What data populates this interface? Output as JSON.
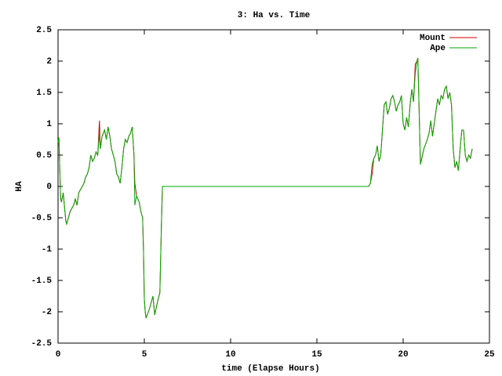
{
  "chart_data": {
    "type": "line",
    "title": "3: Ha vs. Time",
    "xlabel": "time (Elapse Hours)",
    "ylabel": "HA",
    "x": [
      0,
      0.05,
      0.15,
      0.2,
      0.3,
      0.45,
      0.5,
      0.7,
      0.9,
      1.0,
      1.1,
      1.2,
      1.4,
      1.5,
      1.6,
      1.7,
      1.8,
      1.9,
      2.0,
      2.1,
      2.2,
      2.3,
      2.4,
      2.45,
      2.55,
      2.7,
      2.8,
      2.9,
      3.0,
      3.1,
      3.2,
      3.3,
      3.4,
      3.5,
      3.6,
      3.7,
      3.8,
      3.9,
      4.0,
      4.1,
      4.2,
      4.3,
      4.4,
      4.45,
      4.55,
      4.7,
      4.8,
      4.9,
      4.95,
      5.0,
      5.05,
      5.1,
      5.3,
      5.5,
      5.6,
      5.8,
      5.9,
      6.0,
      6.05,
      18.0,
      18.1,
      18.2,
      18.3,
      18.4,
      18.5,
      18.6,
      18.7,
      18.8,
      18.9,
      19.0,
      19.1,
      19.2,
      19.3,
      19.4,
      19.5,
      19.6,
      19.7,
      19.8,
      19.9,
      20.0,
      20.1,
      20.2,
      20.3,
      20.4,
      20.5,
      20.6,
      20.7,
      20.8,
      20.85,
      20.9,
      21.0,
      21.2,
      21.4,
      21.5,
      21.6,
      21.7,
      21.8,
      21.9,
      22.0,
      22.1,
      22.2,
      22.3,
      22.4,
      22.5,
      22.6,
      22.7,
      22.8,
      22.9,
      23.0,
      23.1,
      23.2,
      23.3,
      23.4,
      23.5,
      23.6,
      23.7,
      23.8,
      23.9,
      24.0
    ],
    "series": [
      {
        "name": "Mount",
        "color": "#cc0000",
        "values": [
          0.7,
          0.78,
          -0.2,
          -0.25,
          -0.1,
          -0.55,
          -0.6,
          -0.4,
          -0.3,
          -0.2,
          -0.3,
          -0.1,
          0,
          0.05,
          0.15,
          0.2,
          0.3,
          0.5,
          0.4,
          0.45,
          0.55,
          0.5,
          1.05,
          0.6,
          0.8,
          0.9,
          0.75,
          0.95,
          0.8,
          0.6,
          0.5,
          0.4,
          0.2,
          0.15,
          0.05,
          0.3,
          0.6,
          0.75,
          0.7,
          0.8,
          0.85,
          0.95,
          0.5,
          0.05,
          -0.15,
          -0.25,
          -0.4,
          -0.5,
          -1.0,
          -1.8,
          -2.0,
          -2.1,
          -1.95,
          -1.75,
          -2.05,
          -1.8,
          -1.7,
          -0.5,
          0,
          0,
          0.05,
          0.2,
          0.45,
          0.5,
          0.65,
          0.4,
          0.5,
          0.9,
          1.3,
          1.35,
          1.15,
          1.25,
          1.4,
          1.45,
          1.35,
          1.2,
          1.3,
          1.35,
          1.45,
          1.0,
          0.9,
          1.1,
          0.95,
          1.3,
          1.55,
          1.35,
          1.95,
          2.0,
          2.05,
          1.5,
          0.35,
          0.6,
          0.75,
          0.85,
          1.05,
          0.8,
          1.0,
          1.2,
          1.4,
          1.3,
          1.45,
          1.4,
          1.55,
          1.6,
          1.4,
          1.5,
          1.3,
          0.6,
          0.3,
          0.4,
          0.25,
          0.6,
          0.9,
          0.9,
          0.5,
          0.4,
          0.5,
          0.45,
          0.6
        ]
      },
      {
        "name": "Ape",
        "color": "#00aa00",
        "values": [
          0.7,
          0.78,
          -0.2,
          -0.25,
          -0.1,
          -0.55,
          -0.6,
          -0.4,
          -0.3,
          -0.2,
          -0.3,
          -0.1,
          0,
          0.05,
          0.15,
          0.2,
          0.3,
          0.5,
          0.4,
          0.45,
          0.55,
          0.5,
          0.85,
          0.6,
          0.8,
          0.9,
          0.75,
          0.95,
          0.8,
          0.6,
          0.5,
          0.4,
          0.2,
          0.15,
          0.05,
          0.3,
          0.6,
          0.75,
          0.7,
          0.8,
          0.85,
          0.95,
          0.5,
          -0.3,
          -0.15,
          -0.25,
          -0.4,
          -0.5,
          -1.0,
          -1.8,
          -2.0,
          -2.1,
          -1.95,
          -1.75,
          -2.05,
          -1.8,
          -1.7,
          -0.5,
          0,
          0,
          0.05,
          0.35,
          0.45,
          0.5,
          0.65,
          0.4,
          0.5,
          0.9,
          1.3,
          1.35,
          1.15,
          1.25,
          1.4,
          1.45,
          1.35,
          1.2,
          1.3,
          1.35,
          1.45,
          1.0,
          0.9,
          1.1,
          0.95,
          1.3,
          1.55,
          1.35,
          1.8,
          2.0,
          2.05,
          1.5,
          0.35,
          0.6,
          0.75,
          0.85,
          1.05,
          0.8,
          1.0,
          1.2,
          1.4,
          1.3,
          1.45,
          1.4,
          1.55,
          1.6,
          1.4,
          1.5,
          1.3,
          0.6,
          0.3,
          0.4,
          0.25,
          0.6,
          0.9,
          0.9,
          0.5,
          0.4,
          0.5,
          0.45,
          0.6
        ]
      }
    ],
    "xlim": [
      0,
      25
    ],
    "xticks": [
      0,
      5,
      10,
      15,
      20,
      25
    ],
    "ylim": [
      -2.5,
      2.5
    ],
    "yticks": [
      -2.5,
      -2,
      -1.5,
      -1,
      -0.5,
      0,
      0.5,
      1,
      1.5,
      2,
      2.5
    ],
    "grid": false,
    "legend": "top-right"
  }
}
